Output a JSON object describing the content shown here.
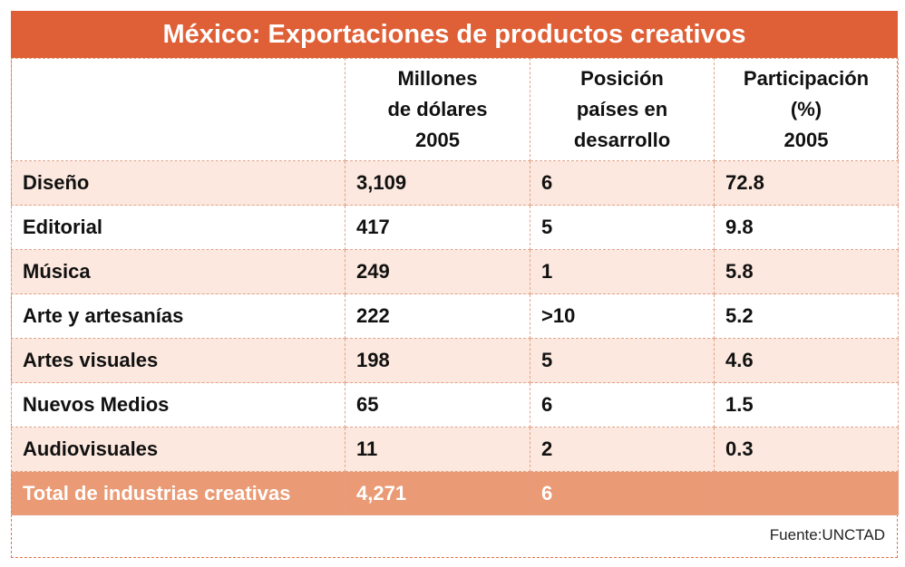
{
  "title": "México: Exportaciones de productos creativos",
  "columns": [
    "",
    "Millones\nde dólares\n2005",
    "Posición\npaíses en\ndesarrollo",
    "Participación\n(%)\n2005"
  ],
  "rows": [
    {
      "category": "Diseño",
      "millions": "3,109",
      "position": "6",
      "share": "72.8"
    },
    {
      "category": "Editorial",
      "millions": "417",
      "position": "5",
      "share": "9.8"
    },
    {
      "category": "Música",
      "millions": "249",
      "position": "1",
      "share": "5.8"
    },
    {
      "category": "Arte y artesanías",
      "millions": "222",
      "position": ">10",
      "share": "5.2"
    },
    {
      "category": "Artes visuales",
      "millions": "198",
      "position": "5",
      "share": "4.6"
    },
    {
      "category": "Nuevos Medios",
      "millions": "65",
      "position": "6",
      "share": "1.5"
    },
    {
      "category": "Audiovisuales",
      "millions": "11",
      "position": "2",
      "share": "0.3"
    }
  ],
  "total": {
    "category": "Total de industrias creativas",
    "millions": "4,271",
    "position": "6",
    "share": ""
  },
  "source": "Fuente:UNCTAD",
  "colors": {
    "title_bg": "#df5f36",
    "row_alt": "#fce8de",
    "total_bg": "#ea9a74"
  }
}
